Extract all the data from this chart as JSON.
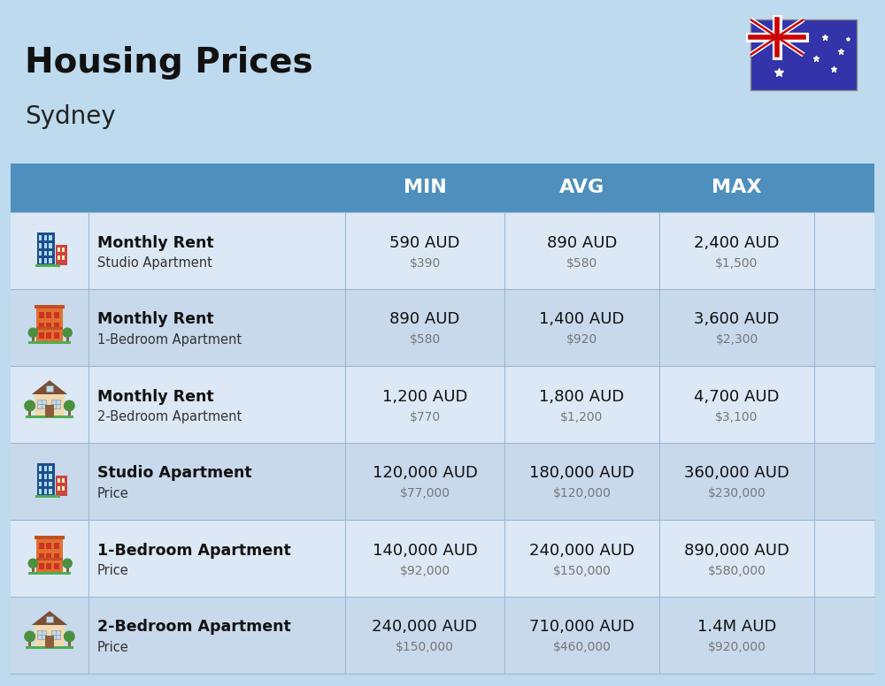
{
  "title": "Housing Prices",
  "subtitle": "Sydney",
  "background_color": "#BEDAEE",
  "header_bg_color": "#4E8FBE",
  "row_bg_even": "#DCE8F5",
  "row_bg_odd": "#C8D9EC",
  "col_headers": [
    "MIN",
    "AVG",
    "MAX"
  ],
  "rows": [
    {
      "label_bold": "Monthly Rent",
      "label_sub": "Studio Apartment",
      "min_main": "590 AUD",
      "min_sub": "$390",
      "avg_main": "890 AUD",
      "avg_sub": "$580",
      "max_main": "2,400 AUD",
      "max_sub": "$1,500",
      "icon_type": "city_blue"
    },
    {
      "label_bold": "Monthly Rent",
      "label_sub": "1-Bedroom Apartment",
      "min_main": "890 AUD",
      "min_sub": "$580",
      "avg_main": "1,400 AUD",
      "avg_sub": "$920",
      "max_main": "3,600 AUD",
      "max_sub": "$2,300",
      "icon_type": "apartment_orange"
    },
    {
      "label_bold": "Monthly Rent",
      "label_sub": "2-Bedroom Apartment",
      "min_main": "1,200 AUD",
      "min_sub": "$770",
      "avg_main": "1,800 AUD",
      "avg_sub": "$1,200",
      "max_main": "4,700 AUD",
      "max_sub": "$3,100",
      "icon_type": "house_beige"
    },
    {
      "label_bold": "Studio Apartment",
      "label_sub": "Price",
      "min_main": "120,000 AUD",
      "min_sub": "$77,000",
      "avg_main": "180,000 AUD",
      "avg_sub": "$120,000",
      "max_main": "360,000 AUD",
      "max_sub": "$230,000",
      "icon_type": "city_blue"
    },
    {
      "label_bold": "1-Bedroom Apartment",
      "label_sub": "Price",
      "min_main": "140,000 AUD",
      "min_sub": "$92,000",
      "avg_main": "240,000 AUD",
      "avg_sub": "$150,000",
      "max_main": "890,000 AUD",
      "max_sub": "$580,000",
      "icon_type": "apartment_orange"
    },
    {
      "label_bold": "2-Bedroom Apartment",
      "label_sub": "Price",
      "min_main": "240,000 AUD",
      "min_sub": "$150,000",
      "avg_main": "710,000 AUD",
      "avg_sub": "$460,000",
      "max_main": "1.4M AUD",
      "max_sub": "$920,000",
      "icon_type": "house_beige"
    }
  ]
}
